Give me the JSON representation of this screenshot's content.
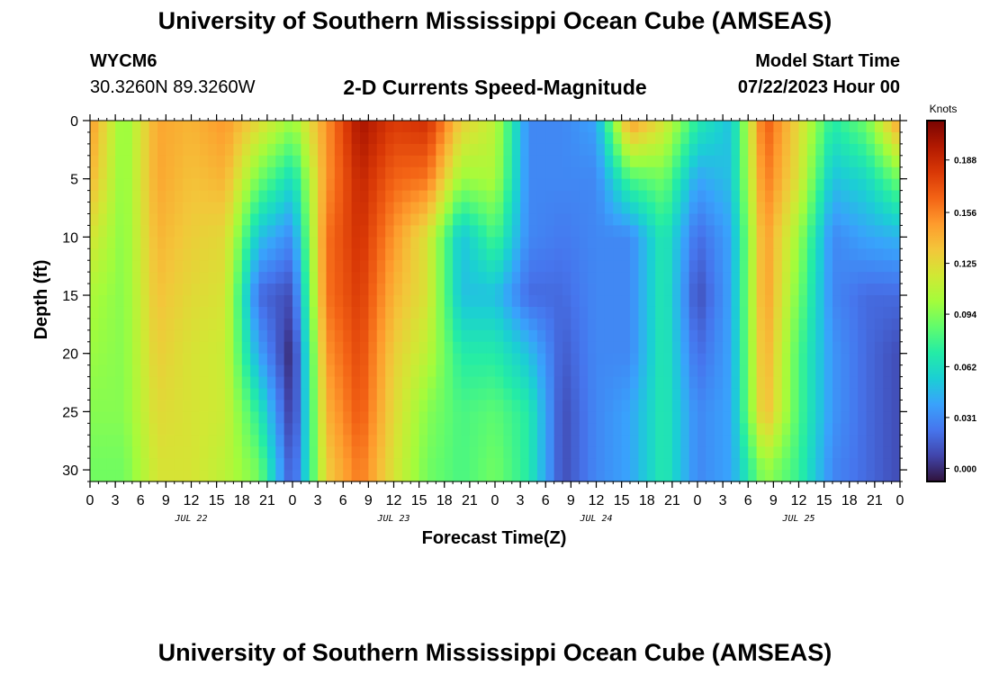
{
  "page": {
    "title_top": "University of Southern Mississippi Ocean Cube (AMSEAS)",
    "station_id": "WYCM6",
    "coords": "30.3260N  89.3260W",
    "subtitle": "2-D Currents Speed-Magnitude",
    "model_start_label": "Model Start Time",
    "model_start_value": "07/22/2023 Hour 00",
    "title_bottom": "University of Southern Mississippi Ocean Cube (AMSEAS)"
  },
  "chart_data": {
    "type": "heatmap",
    "title": "2-D Currents Speed-Magnitude",
    "xlabel": "Forecast Time(Z)",
    "ylabel": "Depth (ft)",
    "x_unit": "hours since 07/22/2023 00Z",
    "x_range": [
      0,
      96
    ],
    "y_range": [
      0,
      31
    ],
    "y_inverted": true,
    "x_ticks": [
      "0",
      "3",
      "6",
      "9",
      "12",
      "15",
      "18",
      "21",
      "0",
      "3",
      "6",
      "9",
      "12",
      "15",
      "18",
      "21",
      "0",
      "3",
      "6",
      "9",
      "12",
      "15",
      "18",
      "21",
      "0",
      "3",
      "6",
      "9",
      "12",
      "15",
      "18",
      "21",
      "0"
    ],
    "y_ticks": [
      0,
      5,
      10,
      15,
      20,
      25,
      30
    ],
    "date_labels": [
      {
        "label": "JUL 22",
        "hour": 12
      },
      {
        "label": "JUL 23",
        "hour": 36
      },
      {
        "label": "JUL 24",
        "hour": 60
      },
      {
        "label": "JUL 25",
        "hour": 84
      }
    ],
    "colorbar": {
      "unit": "Knots",
      "range": [
        -0.008,
        0.212
      ],
      "ticks": [
        0.0,
        0.031,
        0.062,
        0.094,
        0.125,
        0.156,
        0.188
      ],
      "tick_labels": [
        "0.000",
        "0.031",
        "0.062",
        "0.094",
        "0.125",
        "0.156",
        "0.188"
      ],
      "colors": [
        "#30123b",
        "#4145ab",
        "#4675ed",
        "#39a2fc",
        "#1bcfd4",
        "#24eca6",
        "#61fc6c",
        "#a4fc3b",
        "#d1e834",
        "#f3c63a",
        "#fe9b2d",
        "#f36315",
        "#d93806",
        "#b11901",
        "#7a0402"
      ]
    },
    "grid_depths": [
      0,
      5,
      10,
      15,
      20,
      25,
      30
    ],
    "grid_hours": [
      0,
      4,
      8,
      12,
      16,
      20,
      24,
      28,
      32,
      36,
      40,
      44,
      48,
      52,
      56,
      60,
      64,
      68,
      72,
      76,
      80,
      84,
      88,
      92,
      96
    ],
    "speed_knots": [
      [
        0.15,
        0.095,
        0.145,
        0.14,
        0.15,
        0.125,
        0.1,
        0.15,
        0.2,
        0.18,
        0.185,
        0.13,
        0.11,
        0.03,
        0.03,
        0.04,
        0.15,
        0.12,
        0.07,
        0.05,
        0.17,
        0.125,
        0.07,
        0.09,
        0.15
      ],
      [
        0.14,
        0.095,
        0.145,
        0.135,
        0.14,
        0.09,
        0.06,
        0.15,
        0.19,
        0.165,
        0.16,
        0.1,
        0.105,
        0.03,
        0.03,
        0.03,
        0.08,
        0.09,
        0.04,
        0.05,
        0.16,
        0.12,
        0.05,
        0.06,
        0.09
      ],
      [
        0.12,
        0.095,
        0.14,
        0.13,
        0.125,
        0.05,
        0.03,
        0.16,
        0.185,
        0.15,
        0.12,
        0.05,
        0.08,
        0.03,
        0.025,
        0.03,
        0.03,
        0.07,
        0.02,
        0.04,
        0.15,
        0.1,
        0.03,
        0.04,
        0.045
      ],
      [
        0.105,
        0.095,
        0.135,
        0.125,
        0.12,
        0.02,
        0.01,
        0.16,
        0.18,
        0.14,
        0.12,
        0.05,
        0.05,
        0.02,
        0.02,
        0.03,
        0.03,
        0.07,
        0.01,
        0.04,
        0.15,
        0.09,
        0.03,
        0.02,
        0.02
      ],
      [
        0.1,
        0.095,
        0.13,
        0.12,
        0.115,
        0.04,
        -0.003,
        0.15,
        0.175,
        0.13,
        0.11,
        0.07,
        0.07,
        0.05,
        0.015,
        0.03,
        0.03,
        0.07,
        0.02,
        0.04,
        0.145,
        0.08,
        0.035,
        0.02,
        0.01
      ],
      [
        0.095,
        0.095,
        0.125,
        0.12,
        0.115,
        0.07,
        0.0,
        0.14,
        0.17,
        0.125,
        0.095,
        0.08,
        0.085,
        0.07,
        0.01,
        0.03,
        0.04,
        0.07,
        0.03,
        0.04,
        0.14,
        0.08,
        0.035,
        0.02,
        0.01
      ],
      [
        0.09,
        0.09,
        0.12,
        0.12,
        0.11,
        0.09,
        0.01,
        0.13,
        0.16,
        0.12,
        0.09,
        0.08,
        0.09,
        0.07,
        0.01,
        0.03,
        0.04,
        0.07,
        0.03,
        0.04,
        0.1,
        0.075,
        0.03,
        0.02,
        0.01
      ]
    ]
  }
}
